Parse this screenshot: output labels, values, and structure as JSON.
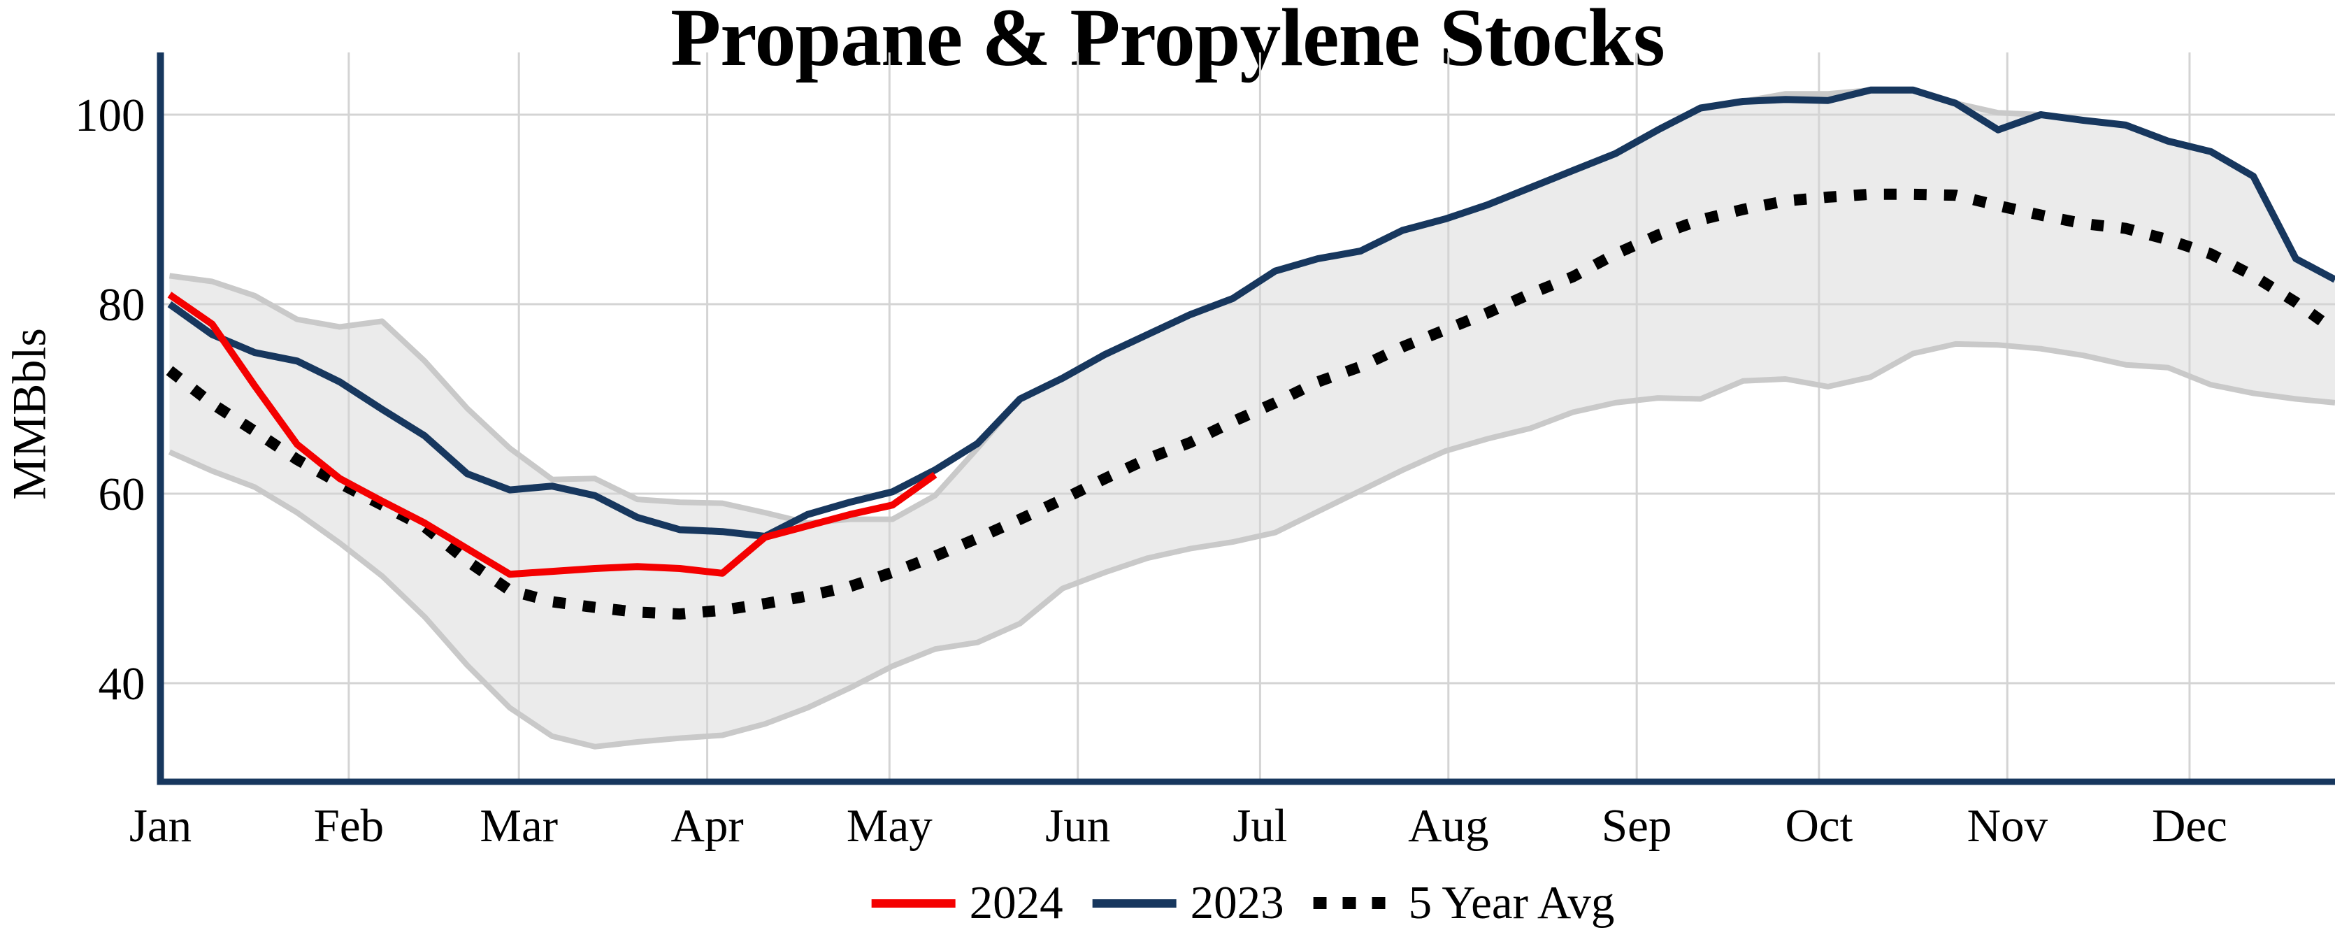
{
  "chart": {
    "title": "Propane & Propylene Stocks",
    "y_axis": {
      "label": "MMBbls",
      "ticks": [
        40,
        60,
        80,
        100
      ]
    },
    "x_axis": {
      "months": [
        "Jan",
        "Feb",
        "Mar",
        "Apr",
        "May",
        "Jun",
        "Jul",
        "Aug",
        "Sep",
        "Oct",
        "Nov",
        "Dec"
      ]
    },
    "legend": {
      "items": [
        {
          "label": "2024",
          "color": "#F40000",
          "style": "solid"
        },
        {
          "label": "2023",
          "color": "#17375E",
          "style": "solid"
        },
        {
          "label": "5 Year Avg",
          "color": "#000000",
          "style": "dotted"
        }
      ]
    },
    "colors": {
      "series_2024": "#F40000",
      "series_2023": "#17375E",
      "five_year_avg": "#000000",
      "band_fill": "#EBEBEB",
      "band_edge": "#C9C9C9",
      "gridline": "#D4D4D4",
      "axis_spine": "#17375E",
      "text": "#000000",
      "background": "#FFFFFF"
    }
  },
  "chart_data": {
    "type": "line",
    "title": "Propane & Propylene Stocks",
    "xlabel": "",
    "ylabel": "MMBbls",
    "x_unit": "week_of_year",
    "x_tick_labels": [
      "Jan",
      "Feb",
      "Mar",
      "Apr",
      "May",
      "Jun",
      "Jul",
      "Aug",
      "Sep",
      "Oct",
      "Nov",
      "Dec"
    ],
    "y_ticks": [
      40,
      60,
      80,
      100
    ],
    "ylim": [
      29.5,
      106.5
    ],
    "grid": true,
    "legend_position": "bottom",
    "band": {
      "name": "5 Year Range",
      "top": [
        83.0,
        82.4,
        80.9,
        78.4,
        77.6,
        78.2,
        74.0,
        69.0,
        64.8,
        61.5,
        61.6,
        59.4,
        59.1,
        59.0,
        58.0,
        56.9,
        57.3,
        57.3,
        59.8,
        64.8,
        70.0,
        72.2,
        74.7,
        76.8,
        78.9,
        80.6,
        83.5,
        84.8,
        85.6,
        87.8,
        89.0,
        90.5,
        92.3,
        94.1,
        95.9,
        98.4,
        100.7,
        101.4,
        102.2,
        102.2,
        102.6,
        102.6,
        101.2,
        100.2,
        100.0,
        99.4,
        98.9,
        97.2,
        96.1,
        93.5,
        84.8,
        82.6
      ],
      "bottom": [
        64.4,
        62.4,
        60.7,
        58.0,
        54.8,
        51.3,
        47.0,
        41.9,
        37.4,
        34.4,
        33.3,
        33.8,
        34.2,
        34.5,
        35.7,
        37.4,
        39.5,
        41.8,
        43.6,
        44.3,
        46.3,
        50.0,
        51.7,
        53.2,
        54.2,
        54.9,
        55.9,
        58.1,
        60.3,
        62.5,
        64.5,
        65.8,
        66.9,
        68.6,
        69.6,
        70.1,
        70.0,
        71.9,
        72.1,
        71.3,
        72.3,
        74.8,
        75.8,
        75.7,
        75.3,
        74.6,
        73.6,
        73.3,
        71.5,
        70.6,
        70.0,
        69.6
      ]
    },
    "series": [
      {
        "name": "2024",
        "color": "#F40000",
        "style": "solid",
        "values": [
          81.0,
          77.9,
          71.4,
          65.2,
          61.6,
          59.2,
          56.9,
          54.2,
          51.5,
          51.8,
          52.1,
          52.3,
          52.1,
          51.6,
          55.4,
          56.6,
          57.8,
          58.8,
          62.0
        ]
      },
      {
        "name": "2023",
        "color": "#17375E",
        "style": "solid",
        "values": [
          80.0,
          76.8,
          74.9,
          74.0,
          71.8,
          68.9,
          66.1,
          62.1,
          60.4,
          60.8,
          59.8,
          57.5,
          56.2,
          56.0,
          55.5,
          57.8,
          59.1,
          60.2,
          62.5,
          65.3,
          70.0,
          72.2,
          74.7,
          76.8,
          78.9,
          80.6,
          83.5,
          84.8,
          85.6,
          87.8,
          89.0,
          90.5,
          92.3,
          94.1,
          95.9,
          98.4,
          100.7,
          101.4,
          101.6,
          101.5,
          102.6,
          102.6,
          101.2,
          98.4,
          100.0,
          99.4,
          98.9,
          97.2,
          96.1,
          93.5,
          84.8,
          82.6
        ]
      },
      {
        "name": "5 Year Avg",
        "color": "#000000",
        "style": "dotted",
        "values": [
          73.0,
          69.5,
          66.6,
          63.6,
          61.1,
          58.8,
          56.5,
          52.9,
          49.8,
          48.6,
          48.0,
          47.5,
          47.3,
          47.7,
          48.4,
          49.2,
          50.2,
          51.7,
          53.4,
          55.3,
          57.3,
          59.4,
          61.6,
          63.7,
          65.4,
          67.6,
          69.6,
          71.8,
          73.4,
          75.5,
          77.3,
          79.1,
          81.1,
          82.9,
          85.3,
          87.3,
          88.9,
          90.0,
          90.9,
          91.3,
          91.6,
          91.6,
          91.5,
          90.4,
          89.4,
          88.5,
          88.0,
          86.8,
          85.3,
          83.0,
          80.2,
          77.2
        ]
      }
    ]
  }
}
